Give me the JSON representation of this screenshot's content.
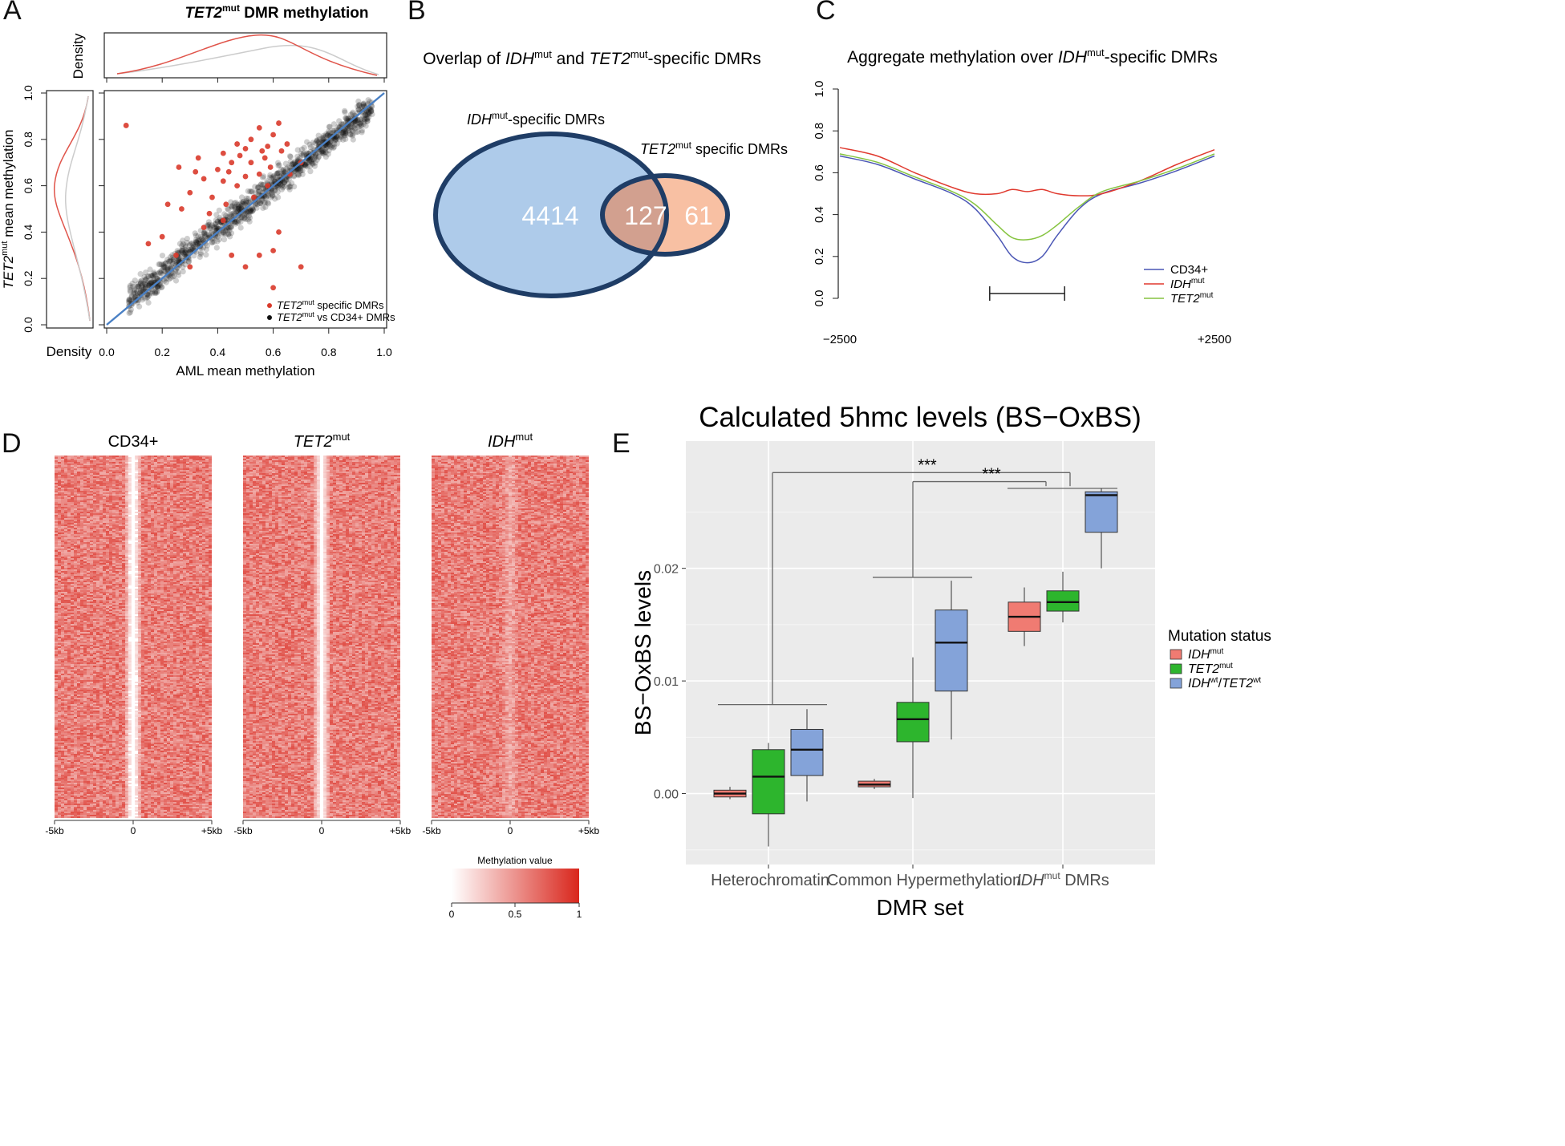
{
  "panels": {
    "a": {
      "letter": "A",
      "title_italic": "TET2",
      "title_sup": "mut",
      "title_rest": " DMR methylation",
      "top_density_label": "Density",
      "left_density_label": "Density",
      "xlabel": "AML mean methylation",
      "ylabel_italic": "TET2",
      "ylabel_sup": "mut",
      "ylabel_rest": " mean methylation",
      "ticks": [
        "0.0",
        "0.2",
        "0.4",
        "0.6",
        "0.8",
        "1.0"
      ],
      "legend": [
        {
          "italic": "TET2",
          "sup": "mut",
          "rest": " specific DMRs",
          "color": "#d93a2b"
        },
        {
          "italic": "TET2",
          "sup": "mut",
          "rest": " vs CD34+ DMRs",
          "color": "#111111"
        }
      ]
    },
    "b": {
      "letter": "B",
      "title_pre": "Overlap of ",
      "title_i1": "IDH",
      "title_s1": "mut",
      "title_mid": " and ",
      "title_i2": "TET2",
      "title_s2": "mut",
      "title_post": "-specific DMRs",
      "set1_italic": "IDH",
      "set1_sup": "mut",
      "set1_rest": "-specific DMRs",
      "set2_italic": "TET2",
      "set2_sup": "mut",
      "set2_rest": " specific DMRs",
      "only1": "4414",
      "both": "127",
      "only2": "61",
      "color1": "#aecbea",
      "color2": "#f8c0a3",
      "overlap_color": "#d2a08f",
      "border": "#1f3d66"
    },
    "c": {
      "letter": "C",
      "title_pre": "Aggregate methylation over ",
      "title_italic": "IDH",
      "title_sup": "mut",
      "title_post": "-specific DMRs",
      "xmin_label": "−2500",
      "xmax_label": "+2500",
      "yticks": [
        "0.0",
        "0.2",
        "0.4",
        "0.6",
        "0.8",
        "1.0"
      ],
      "legend": [
        {
          "text": "CD34+",
          "italic": "",
          "sup": "",
          "color": "#4a56b5"
        },
        {
          "text": "",
          "italic": "IDH",
          "sup": "mut",
          "color": "#e0392e"
        },
        {
          "text": "",
          "italic": "TET2",
          "sup": "mut",
          "color": "#86c440"
        }
      ]
    },
    "d": {
      "letter": "D",
      "headings": [
        {
          "plain": "CD34+",
          "italic": "",
          "sup": ""
        },
        {
          "plain": "",
          "italic": "TET2",
          "sup": "mut"
        },
        {
          "plain": "",
          "italic": "IDH",
          "sup": "mut"
        }
      ],
      "xticks": [
        "-5kb",
        "0",
        "+5kb"
      ],
      "colorbar_title": "Methylation value",
      "colorbar_ticks": [
        "0",
        "0.5",
        "1"
      ],
      "color_low": "#ffffff",
      "color_high": "#d9261c"
    },
    "e": {
      "letter": "E",
      "title": "Calculated 5hmc levels (BS−OxBS)",
      "significance": [
        "***",
        "***"
      ],
      "legend_title": "Mutation status",
      "legend_items": [
        {
          "i1": "IDH",
          "s1": "mut",
          "i2": "",
          "s2": "",
          "color": "#f07b72"
        },
        {
          "i1": "TET2",
          "s1": "mut",
          "i2": "",
          "s2": "",
          "color": "#2db52d"
        },
        {
          "i1": "IDH",
          "s1": "wt",
          "i2": "TET2",
          "s2": "wt",
          "color": "#84a3d9"
        }
      ],
      "group_labels": [
        {
          "plain": "Heterochromatin",
          "italic": "",
          "sup": ""
        },
        {
          "plain": "Common Hypermethylation",
          "italic": "",
          "sup": ""
        },
        {
          "plain": " DMRs",
          "italic": "IDH",
          "sup": "mut"
        }
      ]
    }
  },
  "chart_data": [
    {
      "type": "scatter",
      "panel": "A",
      "title": "TET2mut DMR methylation",
      "xlabel": "AML mean methylation",
      "ylabel": "TET2mut mean methylation",
      "xlim": [
        0,
        1
      ],
      "ylim": [
        0,
        1
      ],
      "series": [
        {
          "name": "TET2mut specific DMRs",
          "color": "#d93a2b",
          "points": [
            [
              0.07,
              0.86
            ],
            [
              0.62,
              0.87
            ],
            [
              0.6,
              0.82
            ],
            [
              0.52,
              0.8
            ],
            [
              0.55,
              0.85
            ],
            [
              0.58,
              0.77
            ],
            [
              0.48,
              0.73
            ],
            [
              0.45,
              0.7
            ],
            [
              0.52,
              0.7
            ],
            [
              0.57,
              0.72
            ],
            [
              0.63,
              0.75
            ],
            [
              0.55,
              0.65
            ],
            [
              0.5,
              0.64
            ],
            [
              0.42,
              0.62
            ],
            [
              0.35,
              0.63
            ],
            [
              0.38,
              0.55
            ],
            [
              0.3,
              0.57
            ],
            [
              0.27,
              0.5
            ],
            [
              0.22,
              0.52
            ],
            [
              0.42,
              0.45
            ],
            [
              0.35,
              0.42
            ],
            [
              0.2,
              0.38
            ],
            [
              0.15,
              0.35
            ],
            [
              0.45,
              0.3
            ],
            [
              0.5,
              0.25
            ],
            [
              0.55,
              0.3
            ],
            [
              0.6,
              0.32
            ],
            [
              0.3,
              0.25
            ],
            [
              0.25,
              0.3
            ],
            [
              0.62,
              0.4
            ],
            [
              0.66,
              0.65
            ],
            [
              0.7,
              0.7
            ],
            [
              0.47,
              0.6
            ],
            [
              0.4,
              0.67
            ],
            [
              0.33,
              0.72
            ],
            [
              0.58,
              0.6
            ],
            [
              0.53,
              0.55
            ],
            [
              0.43,
              0.52
            ],
            [
              0.37,
              0.48
            ],
            [
              0.6,
              0.16
            ],
            [
              0.7,
              0.25
            ],
            [
              0.47,
              0.78
            ],
            [
              0.56,
              0.75
            ],
            [
              0.65,
              0.78
            ],
            [
              0.59,
              0.68
            ],
            [
              0.5,
              0.76
            ],
            [
              0.42,
              0.74
            ],
            [
              0.26,
              0.68
            ],
            [
              0.32,
              0.66
            ],
            [
              0.44,
              0.66
            ]
          ]
        },
        {
          "name": "TET2mut vs CD34+ DMRs",
          "color": "#111111",
          "trend": {
            "slope": 0.95,
            "intercept": 0.03,
            "spread": 0.09,
            "x_range": [
              0.08,
              0.96
            ]
          }
        }
      ],
      "fit_line": [
        [
          0,
          0
        ],
        [
          1,
          1
        ]
      ],
      "legend_position": "bottom-right"
    },
    {
      "type": "venn",
      "panel": "B",
      "title": "Overlap of IDHmut and TET2mut-specific DMRs",
      "sets": [
        {
          "name": "IDHmut-specific DMRs",
          "only": 4414
        },
        {
          "name": "TET2mut specific DMRs",
          "only": 61
        }
      ],
      "intersection": 127
    },
    {
      "type": "line",
      "panel": "C",
      "title": "Aggregate methylation over IDHmut-specific DMRs",
      "x": [
        -2500,
        -2000,
        -1500,
        -1000,
        -700,
        -400,
        -200,
        0,
        200,
        400,
        700,
        1000,
        1500,
        2000,
        2500
      ],
      "ylim": [
        0,
        1
      ],
      "series": [
        {
          "name": "CD34+",
          "color": "#4a56b5",
          "values": [
            0.68,
            0.64,
            0.57,
            0.5,
            0.43,
            0.3,
            0.2,
            0.17,
            0.2,
            0.3,
            0.43,
            0.5,
            0.55,
            0.61,
            0.68
          ]
        },
        {
          "name": "IDHmut",
          "color": "#e0392e",
          "values": [
            0.72,
            0.68,
            0.6,
            0.53,
            0.5,
            0.5,
            0.52,
            0.51,
            0.52,
            0.5,
            0.49,
            0.5,
            0.56,
            0.64,
            0.71
          ]
        },
        {
          "name": "TET2mut",
          "color": "#86c440",
          "values": [
            0.69,
            0.65,
            0.58,
            0.51,
            0.45,
            0.35,
            0.29,
            0.28,
            0.3,
            0.35,
            0.44,
            0.51,
            0.56,
            0.62,
            0.69
          ]
        }
      ],
      "bracket": [
        -500,
        500
      ],
      "legend_position": "bottom-right"
    },
    {
      "type": "heatmap",
      "panel": "D",
      "columns": [
        "CD34+",
        "TET2mut",
        "IDHmut"
      ],
      "x_range_kb": [
        -5,
        5
      ],
      "center_methylation": [
        0.05,
        0.15,
        0.55
      ],
      "flank_methylation": 0.7,
      "color_scale": [
        0,
        1
      ]
    },
    {
      "type": "box",
      "panel": "E",
      "title": "Calculated 5hmc levels (BS−OxBS)",
      "xlabel": "DMR set",
      "ylabel": "BS−OxBS levels",
      "ylim": [
        -0.0063,
        0.0313
      ],
      "yticks": [
        0.0,
        0.01,
        0.02
      ],
      "ytick_labels": [
        "0.00",
        "0.01",
        "0.02"
      ],
      "categories": [
        "Heterochromatin",
        "Common Hypermethylation",
        "IDHmut DMRs"
      ],
      "series": [
        {
          "name": "IDHmut",
          "color": "#f07b72",
          "stats": [
            {
              "min": -0.0005,
              "q1": -0.0003,
              "median": 0.0,
              "q3": 0.0003,
              "max": 0.0006
            },
            {
              "min": 0.0004,
              "q1": 0.0006,
              "median": 0.0008,
              "q3": 0.0011,
              "max": 0.0013
            },
            {
              "min": 0.0131,
              "q1": 0.0144,
              "median": 0.0157,
              "q3": 0.017,
              "max": 0.0183
            }
          ]
        },
        {
          "name": "TET2mut",
          "color": "#2db52d",
          "stats": [
            {
              "min": -0.0047,
              "q1": -0.0018,
              "median": 0.0015,
              "q3": 0.0039,
              "max": 0.0045
            },
            {
              "min": -0.0004,
              "q1": 0.0046,
              "median": 0.0066,
              "q3": 0.0081,
              "max": 0.0121
            },
            {
              "min": 0.0152,
              "q1": 0.0162,
              "median": 0.017,
              "q3": 0.018,
              "max": 0.0197
            }
          ]
        },
        {
          "name": "IDHwt/TET2wt",
          "color": "#84a3d9",
          "stats": [
            {
              "min": -0.0007,
              "q1": 0.0016,
              "median": 0.0039,
              "q3": 0.0057,
              "max": 0.0075
            },
            {
              "min": 0.0048,
              "q1": 0.0091,
              "median": 0.0134,
              "q3": 0.0163,
              "max": 0.0189
            },
            {
              "min": 0.02,
              "q1": 0.0232,
              "median": 0.0265,
              "q3": 0.0268,
              "max": 0.0271
            }
          ]
        }
      ],
      "legend_position": "right"
    }
  ]
}
